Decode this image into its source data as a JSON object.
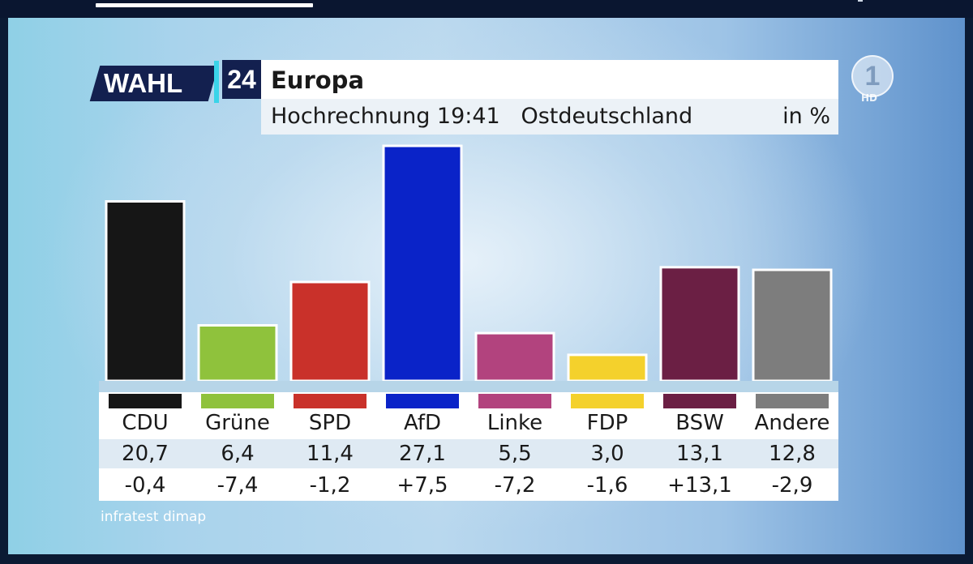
{
  "header": {
    "logo_wahl": "WAHL",
    "logo_num": "24",
    "title": "Europa",
    "subtitle_time": "Hochrechnung 19:41",
    "subtitle_region": "Ostdeutschland",
    "unit": "in %"
  },
  "broadcaster": {
    "logo_numeral": "1",
    "hd_label": "HD"
  },
  "chart_data": {
    "type": "bar",
    "title": "Europa",
    "subtitle": "Hochrechnung 19:41 Ostdeutschland",
    "unit": "in %",
    "categories": [
      "CDU",
      "Grüne",
      "SPD",
      "AfD",
      "Linke",
      "FDP",
      "BSW",
      "Andere"
    ],
    "values": [
      20.7,
      6.4,
      11.4,
      27.1,
      5.5,
      3.0,
      13.1,
      12.8
    ],
    "value_labels": [
      "20,7",
      "6,4",
      "11,4",
      "27,1",
      "5,5",
      "3,0",
      "13,1",
      "12,8"
    ],
    "diff_labels": [
      "-0,4",
      "-7,4",
      "-1,2",
      "+7,5",
      "-7,2",
      "-1,6",
      "+13,1",
      "-2,9"
    ],
    "diffs": [
      -0.4,
      -7.4,
      -1.2,
      7.5,
      -7.2,
      -1.6,
      13.1,
      -2.9
    ],
    "colors": [
      "#161616",
      "#8fc23c",
      "#c9312a",
      "#0a23c8",
      "#b2437e",
      "#f4d12c",
      "#6b1f44",
      "#7d7d7d"
    ],
    "ylim": [
      0,
      27.1
    ],
    "grid": false
  },
  "source": "infratest dimap"
}
